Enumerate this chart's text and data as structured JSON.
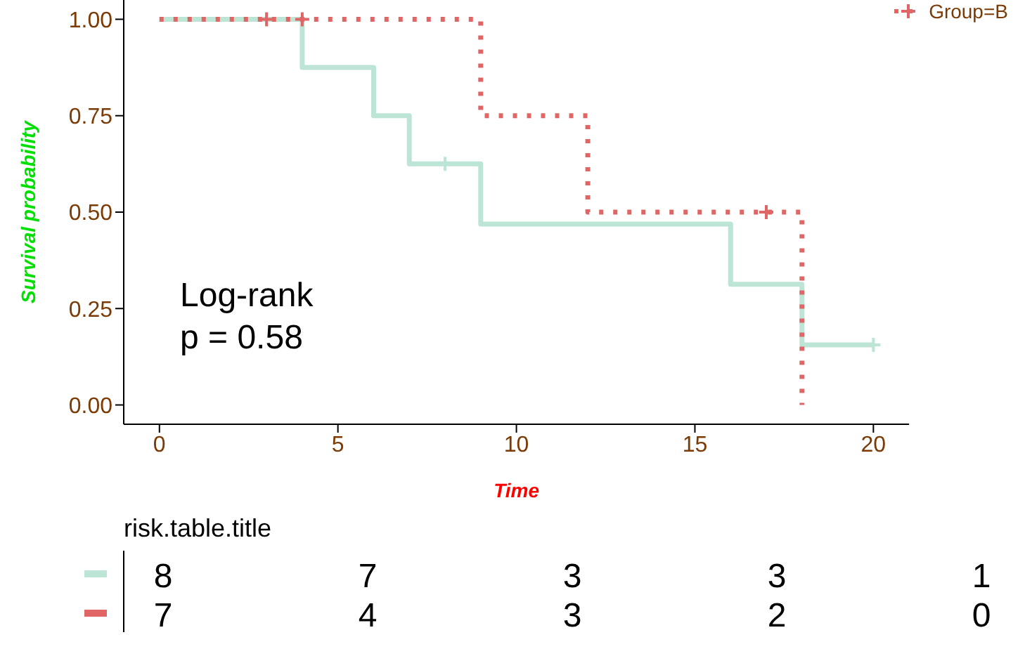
{
  "chart_data": [
    {
      "type": "step",
      "xlabel": "Time",
      "ylabel": "Survival probability",
      "xlim": [
        -1,
        21
      ],
      "ylim": [
        -0.05,
        1.05
      ],
      "xticks": [
        0,
        5,
        10,
        15,
        20
      ],
      "yticks": [
        {
          "value": 0,
          "label": "0.00"
        },
        {
          "value": 0.25,
          "label": "0.25"
        },
        {
          "value": 0.5,
          "label": "0.50"
        },
        {
          "value": 0.75,
          "label": "0.75"
        },
        {
          "value": 1,
          "label": "1.00"
        }
      ],
      "legend": "top right",
      "annotations": [
        "Log-rank\np = 0.58"
      ],
      "series": [
        {
          "color": "#bde5d5",
          "line_style": "solid",
          "x": [
            0,
            4,
            6,
            7,
            9,
            16,
            18,
            20
          ],
          "values": [
            1,
            0.875,
            0.75,
            0.625,
            0.469,
            0.313,
            0.156,
            0.156
          ]
        },
        {
          "name": "Group=B",
          "color": "#e06666",
          "line_style": "dotted",
          "x": [
            0,
            9,
            12,
            18
          ],
          "values": [
            1,
            0.75,
            0.5,
            0
          ]
        },
        {
          "type": "scatter",
          "marker": "cross",
          "color": "#bde5d5",
          "x": [
            8,
            20
          ],
          "values": [
            0.625,
            0.156
          ]
        },
        {
          "type": "scatter",
          "marker": "cross",
          "color": "#e06666",
          "x": [
            3,
            4,
            17
          ],
          "values": [
            1,
            1,
            0.5
          ]
        }
      ]
    },
    {
      "type": "heatmap",
      "title": "risk.table.title",
      "categories": [
        null,
        null,
        null,
        null,
        null
      ],
      "y_categories": [
        null,
        null
      ],
      "colors": [
        "#bde5d5",
        "#e06666"
      ],
      "cells": [
        [
          8,
          7,
          3,
          3,
          1
        ],
        [
          7,
          4,
          3,
          2,
          0
        ]
      ],
      "data_labels": true
    }
  ]
}
